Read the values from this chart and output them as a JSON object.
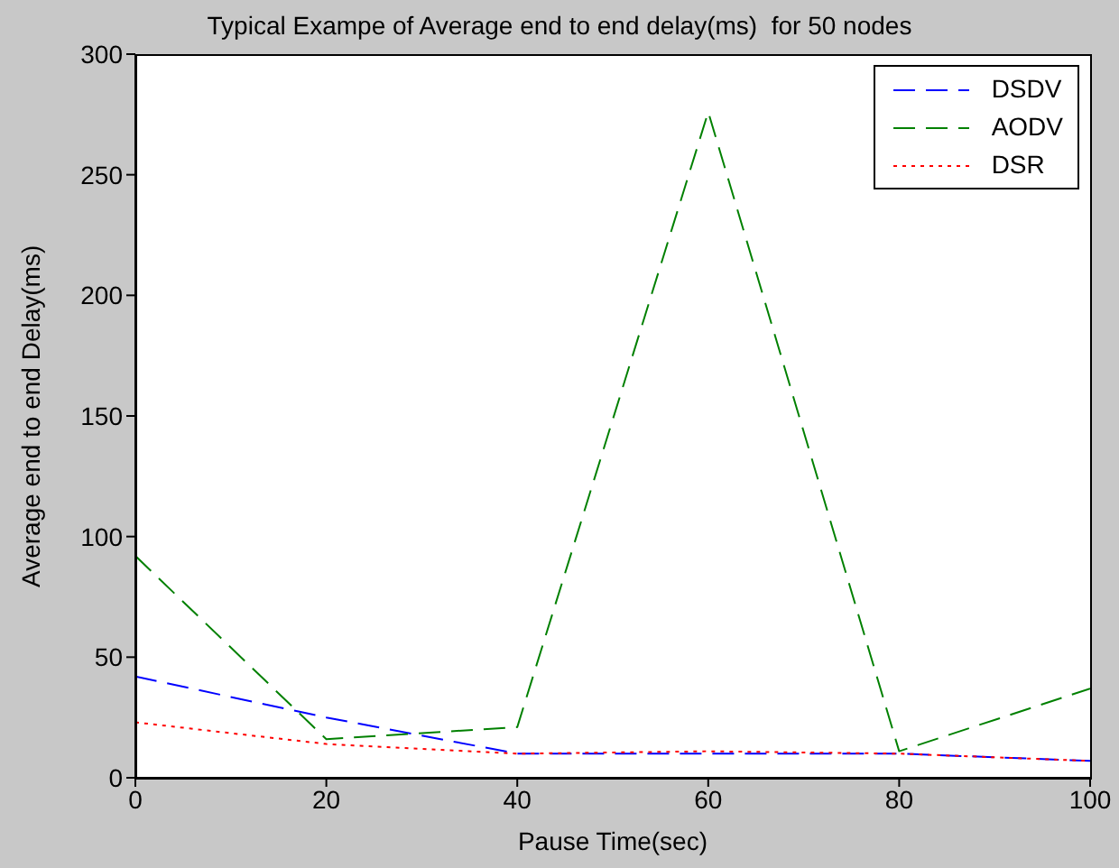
{
  "chart_data": {
    "type": "line",
    "title": "Typical Exampe of Average end to end delay(ms)  for 50 nodes",
    "xlabel": "Pause Time(sec)",
    "ylabel": "Average end to end Delay(ms)",
    "x": [
      0,
      20,
      40,
      60,
      80,
      100
    ],
    "series": [
      {
        "name": "DSDV",
        "color": "#0000ff",
        "line_style": "dashed",
        "values": [
          42,
          25,
          10,
          10,
          10,
          7
        ]
      },
      {
        "name": "AODV",
        "color": "#008000",
        "line_style": "dashed",
        "values": [
          92,
          16,
          21,
          276,
          11,
          37
        ]
      },
      {
        "name": "DSR",
        "color": "#ff0000",
        "line_style": "dotted",
        "values": [
          23,
          14,
          10,
          11,
          10,
          7
        ]
      }
    ],
    "xlim": [
      0,
      100
    ],
    "xticks": [
      0,
      20,
      40,
      60,
      80,
      100
    ],
    "ylim": [
      0,
      300
    ],
    "yticks": [
      0,
      50,
      100,
      150,
      200,
      250,
      300
    ],
    "grid": false,
    "legend": "top right",
    "marker": "none"
  }
}
